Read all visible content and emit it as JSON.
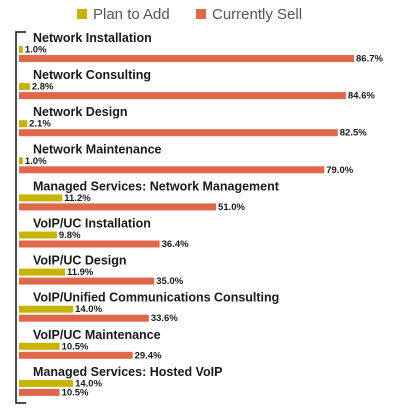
{
  "chart_data": {
    "type": "bar",
    "orientation": "horizontal",
    "legend_position": "top",
    "value_format": "percent_one_decimal",
    "xlim": [
      0,
      100
    ],
    "grid": false,
    "categories": [
      "Network Installation",
      "Network Consulting",
      "Network Design",
      "Network Maintenance",
      "Managed Services: Network Management",
      "VoIP/UC Installation",
      "VoIP/UC Design",
      "VoIP/Unified Communications Consulting",
      "VoIP/UC Maintenance",
      "Managed Services: Hosted VoIP"
    ],
    "series": [
      {
        "name": "Plan to Add",
        "color": "#c8b400",
        "values": [
          1.0,
          2.8,
          2.1,
          1.0,
          11.2,
          9.8,
          11.9,
          14.0,
          10.5,
          14.0
        ]
      },
      {
        "name": "Currently Sell",
        "color": "#e0674a",
        "values": [
          86.7,
          84.6,
          82.5,
          79.0,
          51.0,
          36.4,
          35.0,
          33.6,
          29.4,
          10.5
        ]
      }
    ]
  }
}
